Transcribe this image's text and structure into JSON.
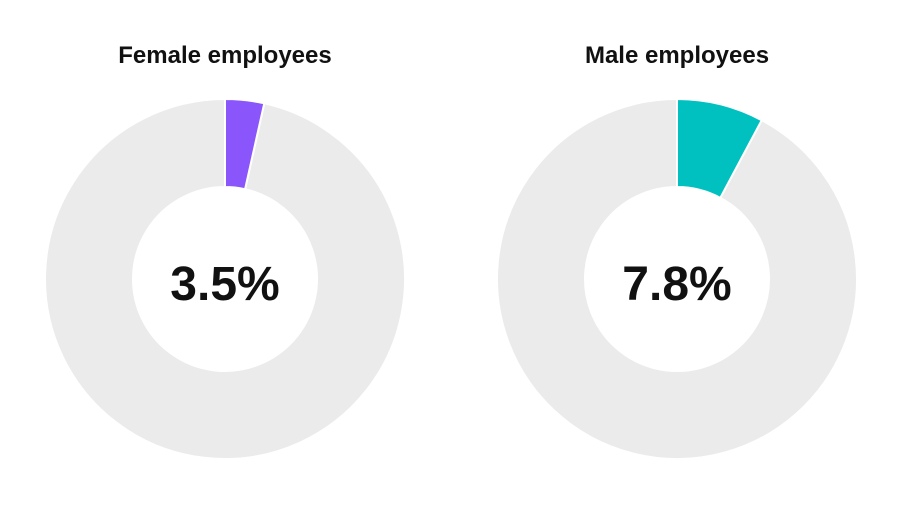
{
  "chart_data": [
    {
      "type": "pie",
      "title": "Female employees",
      "center_label": "3.5%",
      "slices": [
        {
          "label": "highlight",
          "value": 3.5,
          "color": "#8a55fb"
        },
        {
          "label": "remainder",
          "value": 96.5,
          "color": "#ebebeb"
        }
      ]
    },
    {
      "type": "pie",
      "title": "Male employees",
      "center_label": "7.8%",
      "slices": [
        {
          "label": "highlight",
          "value": 7.8,
          "color": "#00c1c0"
        },
        {
          "label": "remainder",
          "value": 92.2,
          "color": "#ebebeb"
        }
      ]
    }
  ]
}
